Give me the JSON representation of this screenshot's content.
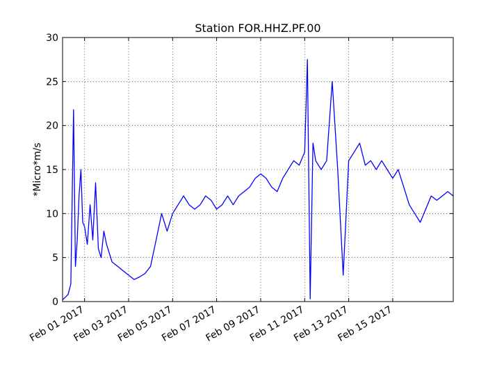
{
  "chart_data": {
    "type": "line",
    "title": "Station FOR.HHZ.PF.00",
    "xlabel": "",
    "ylabel": "*Micro*m/s",
    "x_range": [
      "2017-01-31",
      "2017-02-17T18:00"
    ],
    "ylim": [
      0,
      30
    ],
    "y_ticks": [
      0,
      5,
      10,
      15,
      20,
      25,
      30
    ],
    "x_ticks": [
      {
        "date": "2017-02-01",
        "label": "Feb 01 2017"
      },
      {
        "date": "2017-02-03",
        "label": "Feb 03 2017"
      },
      {
        "date": "2017-02-05",
        "label": "Feb 05 2017"
      },
      {
        "date": "2017-02-07",
        "label": "Feb 07 2017"
      },
      {
        "date": "2017-02-09",
        "label": "Feb 09 2017"
      },
      {
        "date": "2017-02-11",
        "label": "Feb 11 2017"
      },
      {
        "date": "2017-02-13",
        "label": "Feb 13 2017"
      },
      {
        "date": "2017-02-15",
        "label": "Feb 15 2017"
      }
    ],
    "grid": true,
    "line_color": "#0000ff",
    "series": [
      {
        "name": "",
        "points": [
          [
            "2017-01-31T00:00",
            0.2
          ],
          [
            "2017-01-31T03:00",
            0.5
          ],
          [
            "2017-01-31T06:00",
            0.8
          ],
          [
            "2017-01-31T09:00",
            2.0
          ],
          [
            "2017-01-31T12:00",
            21.8
          ],
          [
            "2017-01-31T14:00",
            4.0
          ],
          [
            "2017-01-31T16:00",
            7.0
          ],
          [
            "2017-01-31T18:00",
            12.0
          ],
          [
            "2017-01-31T20:00",
            15.0
          ],
          [
            "2017-01-31T22:00",
            9.0
          ],
          [
            "2017-02-01T00:00",
            8.5
          ],
          [
            "2017-02-01T03:00",
            6.5
          ],
          [
            "2017-02-01T06:00",
            11.0
          ],
          [
            "2017-02-01T09:00",
            7.0
          ],
          [
            "2017-02-01T12:00",
            13.5
          ],
          [
            "2017-02-01T15:00",
            6.0
          ],
          [
            "2017-02-01T18:00",
            5.0
          ],
          [
            "2017-02-01T21:00",
            8.0
          ],
          [
            "2017-02-02T00:00",
            6.5
          ],
          [
            "2017-02-02T06:00",
            4.5
          ],
          [
            "2017-02-02T12:00",
            4.0
          ],
          [
            "2017-02-02T18:00",
            3.5
          ],
          [
            "2017-02-03T00:00",
            3.0
          ],
          [
            "2017-02-03T06:00",
            2.5
          ],
          [
            "2017-02-03T12:00",
            2.8
          ],
          [
            "2017-02-03T18:00",
            3.2
          ],
          [
            "2017-02-04T00:00",
            4.0
          ],
          [
            "2017-02-04T06:00",
            7.0
          ],
          [
            "2017-02-04T12:00",
            10.0
          ],
          [
            "2017-02-04T18:00",
            8.0
          ],
          [
            "2017-02-05T00:00",
            10.0
          ],
          [
            "2017-02-05T06:00",
            11.0
          ],
          [
            "2017-02-05T12:00",
            12.0
          ],
          [
            "2017-02-05T18:00",
            11.0
          ],
          [
            "2017-02-06T00:00",
            10.5
          ],
          [
            "2017-02-06T06:00",
            11.0
          ],
          [
            "2017-02-06T12:00",
            12.0
          ],
          [
            "2017-02-06T18:00",
            11.5
          ],
          [
            "2017-02-07T00:00",
            10.5
          ],
          [
            "2017-02-07T06:00",
            11.0
          ],
          [
            "2017-02-07T12:00",
            12.0
          ],
          [
            "2017-02-07T18:00",
            11.0
          ],
          [
            "2017-02-08T00:00",
            12.0
          ],
          [
            "2017-02-08T06:00",
            12.5
          ],
          [
            "2017-02-08T12:00",
            13.0
          ],
          [
            "2017-02-08T18:00",
            14.0
          ],
          [
            "2017-02-09T00:00",
            14.5
          ],
          [
            "2017-02-09T06:00",
            14.0
          ],
          [
            "2017-02-09T12:00",
            13.0
          ],
          [
            "2017-02-09T18:00",
            12.5
          ],
          [
            "2017-02-10T00:00",
            14.0
          ],
          [
            "2017-02-10T06:00",
            15.0
          ],
          [
            "2017-02-10T12:00",
            16.0
          ],
          [
            "2017-02-10T18:00",
            15.5
          ],
          [
            "2017-02-11T00:00",
            17.0
          ],
          [
            "2017-02-11T03:00",
            27.5
          ],
          [
            "2017-02-11T06:00",
            0.3
          ],
          [
            "2017-02-11T09:00",
            18.0
          ],
          [
            "2017-02-11T12:00",
            16.0
          ],
          [
            "2017-02-11T18:00",
            15.0
          ],
          [
            "2017-02-12T00:00",
            16.0
          ],
          [
            "2017-02-12T06:00",
            25.0
          ],
          [
            "2017-02-12T12:00",
            15.0
          ],
          [
            "2017-02-12T18:00",
            3.0
          ],
          [
            "2017-02-13T00:00",
            16.0
          ],
          [
            "2017-02-13T06:00",
            17.0
          ],
          [
            "2017-02-13T12:00",
            18.0
          ],
          [
            "2017-02-13T18:00",
            15.5
          ],
          [
            "2017-02-14T00:00",
            16.0
          ],
          [
            "2017-02-14T06:00",
            15.0
          ],
          [
            "2017-02-14T12:00",
            16.0
          ],
          [
            "2017-02-14T18:00",
            15.0
          ],
          [
            "2017-02-15T00:00",
            14.0
          ],
          [
            "2017-02-15T06:00",
            15.0
          ],
          [
            "2017-02-15T12:00",
            13.0
          ],
          [
            "2017-02-15T18:00",
            11.0
          ],
          [
            "2017-02-16T00:00",
            10.0
          ],
          [
            "2017-02-16T06:00",
            9.0
          ],
          [
            "2017-02-16T12:00",
            10.5
          ],
          [
            "2017-02-16T18:00",
            12.0
          ],
          [
            "2017-02-17T00:00",
            11.5
          ],
          [
            "2017-02-17T06:00",
            12.0
          ],
          [
            "2017-02-17T12:00",
            12.5
          ],
          [
            "2017-02-17T18:00",
            12.0
          ]
        ]
      }
    ]
  }
}
